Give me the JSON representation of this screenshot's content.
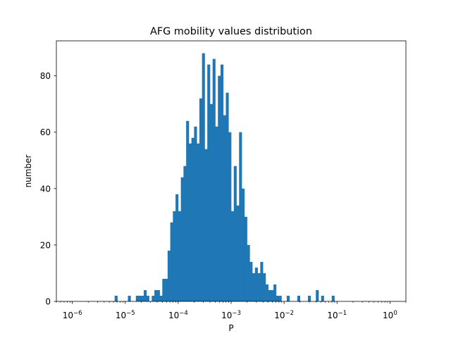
{
  "chart_data": {
    "type": "bar",
    "title": "AFG mobility values distribution",
    "xlabel": "P",
    "ylabel": "number",
    "x_scale": "log",
    "xlim": [
      5e-07,
      2.0
    ],
    "ylim": [
      0,
      92.4
    ],
    "grid": false,
    "bar_color": "#1f77b4",
    "bin_width_log10": 0.05,
    "x_major_ticks": [
      {
        "value": 1e-06,
        "base": "10",
        "exp": "−6"
      },
      {
        "value": 1e-05,
        "base": "10",
        "exp": "−5"
      },
      {
        "value": 0.0001,
        "base": "10",
        "exp": "−4"
      },
      {
        "value": 0.001,
        "base": "10",
        "exp": "−3"
      },
      {
        "value": 0.01,
        "base": "10",
        "exp": "−2"
      },
      {
        "value": 0.1,
        "base": "10",
        "exp": "−1"
      },
      {
        "value": 1,
        "base": "10",
        "exp": "0"
      }
    ],
    "y_ticks": [
      {
        "value": 0,
        "label": "0"
      },
      {
        "value": 20,
        "label": "20"
      },
      {
        "value": 40,
        "label": "40"
      },
      {
        "value": 60,
        "label": "60"
      },
      {
        "value": 80,
        "label": "80"
      }
    ],
    "bins_log10_start": [
      -5.2,
      -4.95,
      -4.8,
      -4.75,
      -4.7,
      -4.65,
      -4.6,
      -4.5,
      -4.45,
      -4.4,
      -4.35,
      -4.3,
      -4.25,
      -4.2,
      -4.15,
      -4.1,
      -4.05,
      -4.0,
      -3.95,
      -3.9,
      -3.85,
      -3.8,
      -3.75,
      -3.7,
      -3.65,
      -3.6,
      -3.55,
      -3.5,
      -3.45,
      -3.4,
      -3.35,
      -3.3,
      -3.25,
      -3.2,
      -3.15,
      -3.1,
      -3.05,
      -3.0,
      -2.95,
      -2.9,
      -2.85,
      -2.8,
      -2.75,
      -2.7,
      -2.65,
      -2.6,
      -2.55,
      -2.5,
      -2.45,
      -2.4,
      -2.35,
      -2.3,
      -2.25,
      -2.2,
      -2.15,
      -2.1,
      -1.95,
      -1.75,
      -1.55,
      -1.4,
      -1.3,
      -1.1
    ],
    "values": [
      2,
      2,
      2,
      2,
      2,
      4,
      2,
      2,
      4,
      4,
      2,
      8,
      8,
      18,
      28,
      32,
      38,
      32,
      44,
      48,
      64,
      56,
      58,
      62,
      56,
      72,
      88,
      54,
      84,
      70,
      86,
      62,
      80,
      84,
      66,
      74,
      60,
      32,
      48,
      34,
      60,
      40,
      30,
      20,
      14,
      10,
      12,
      10,
      14,
      10,
      6,
      4,
      4,
      6,
      2,
      2,
      2,
      2,
      2,
      4,
      2,
      2
    ]
  }
}
